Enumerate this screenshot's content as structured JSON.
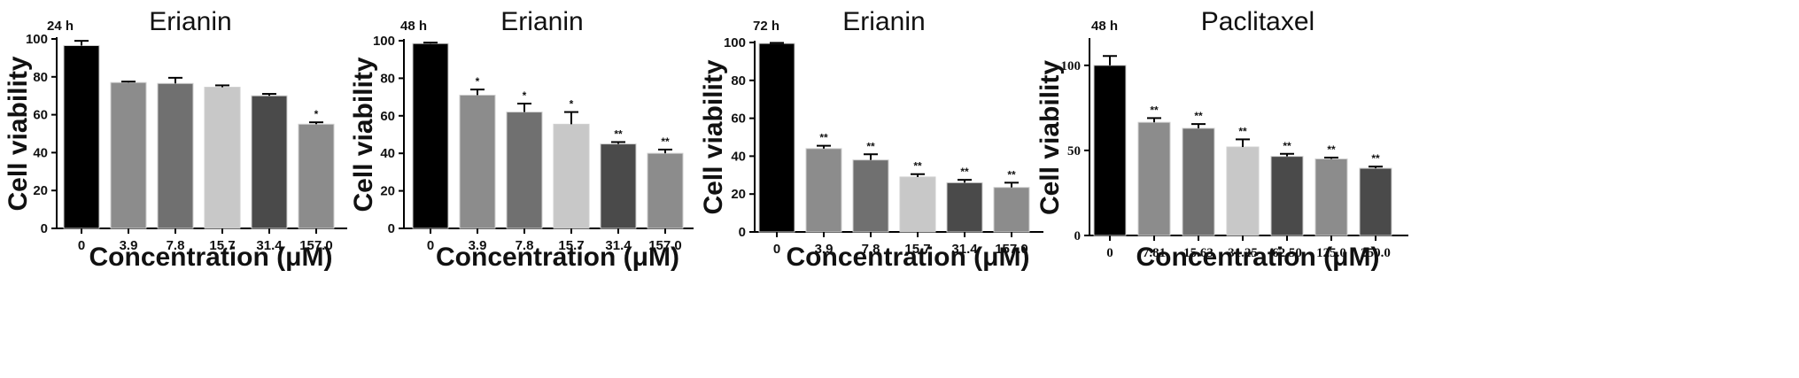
{
  "chart_data": [
    {
      "type": "bar",
      "title": "Erianin",
      "time_label": "24 h",
      "xlabel": "Concentration (μM)",
      "ylabel": "Cell viability",
      "ylim": [
        0,
        100
      ],
      "yticks": [
        "0",
        "20",
        "40",
        "60",
        "80",
        "100"
      ],
      "categories": [
        "0",
        "3.9",
        "7.8",
        "15.7",
        "31.4",
        "157.0"
      ],
      "values": [
        96.5,
        77,
        76.5,
        74.5,
        70,
        55
      ],
      "errors": [
        2.5,
        0.5,
        3,
        1,
        1,
        1
      ],
      "significance": [
        "",
        "",
        "",
        "",
        "",
        "*"
      ],
      "colors": [
        "#000000",
        "#8c8c8c",
        "#707070",
        "#c8c8c8",
        "#4a4a4a",
        "#8c8c8c"
      ]
    },
    {
      "type": "bar",
      "title": "Erianin",
      "time_label": "48 h",
      "xlabel": "Concentration (μM)",
      "ylabel": "Cell viability",
      "ylim": [
        0,
        100
      ],
      "yticks": [
        "0",
        "20",
        "40",
        "60",
        "80",
        "100"
      ],
      "categories": [
        "0",
        "3.9",
        "7.8",
        "15.7",
        "31.4",
        "157.0"
      ],
      "values": [
        98.5,
        71,
        62,
        55.5,
        45,
        40
      ],
      "errors": [
        0.5,
        3,
        4.5,
        6.5,
        1,
        2
      ],
      "significance": [
        "",
        "*",
        "*",
        "*",
        "**",
        "**"
      ],
      "colors": [
        "#000000",
        "#8c8c8c",
        "#707070",
        "#c8c8c8",
        "#4a4a4a",
        "#8c8c8c"
      ]
    },
    {
      "type": "bar",
      "title": "Erianin",
      "time_label": "72 h",
      "xlabel": "Concentration (μM)",
      "ylabel": "Cell viability",
      "ylim": [
        0,
        100
      ],
      "yticks": [
        "0",
        "20",
        "40",
        "60",
        "80",
        "100"
      ],
      "categories": [
        "0",
        "3.9",
        "7.8",
        "15.7",
        "31.4",
        "157.0"
      ],
      "values": [
        99.5,
        44,
        38,
        29,
        26,
        23.5
      ],
      "errors": [
        0.3,
        1.5,
        3,
        1.5,
        1.5,
        2.5
      ],
      "significance": [
        "",
        "**",
        "**",
        "**",
        "**",
        "**"
      ],
      "colors": [
        "#000000",
        "#8c8c8c",
        "#707070",
        "#c8c8c8",
        "#4a4a4a",
        "#8c8c8c"
      ]
    },
    {
      "type": "bar",
      "title": "Paclitaxel",
      "time_label": "48 h",
      "xlabel": "Concentration (μM)",
      "ylabel": "Cell viability",
      "ylim": [
        0,
        115
      ],
      "yticks": [
        "0",
        "50",
        "100"
      ],
      "categories": [
        "0",
        "7.81",
        "15.63",
        "31.25",
        "62.50",
        "125.0",
        "250.0"
      ],
      "values": [
        100,
        66.5,
        63,
        52,
        46.5,
        45,
        39.5
      ],
      "errors": [
        5.5,
        2.5,
        2.5,
        4.5,
        1.5,
        0.8,
        1
      ],
      "significance": [
        "",
        "**",
        "**",
        "**",
        "**",
        "**",
        "**"
      ],
      "colors": [
        "#000000",
        "#8c8c8c",
        "#707070",
        "#c8c8c8",
        "#4a4a4a",
        "#8c8c8c",
        "#4a4a4a"
      ]
    }
  ]
}
